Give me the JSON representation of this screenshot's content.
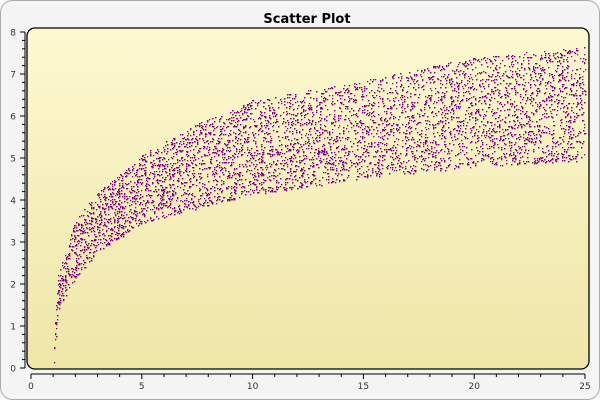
{
  "chart_data": {
    "type": "scatter",
    "title": "Scatter Plot",
    "xlabel": "",
    "ylabel": "",
    "xlim": [
      0,
      25
    ],
    "ylim": [
      0,
      8
    ],
    "x_ticks": [
      0,
      5,
      10,
      15,
      20,
      25
    ],
    "y_ticks": [
      0,
      1,
      2,
      3,
      4,
      5,
      6,
      7,
      8
    ],
    "grid": false,
    "marker_color": "#800080",
    "background_top": "#fdf8d0",
    "background_bottom": "#efe6a8",
    "point_band": {
      "x": [
        1,
        1.2,
        2,
        3,
        5,
        7.5,
        10,
        15,
        20,
        25
      ],
      "lower": [
        0,
        1.38,
        2.14,
        2.74,
        3.45,
        3.8,
        4.12,
        4.52,
        4.79,
        4.95
      ],
      "upper": [
        0.3,
        2.17,
        3.52,
        4.17,
        5.07,
        5.83,
        6.38,
        6.86,
        7.4,
        7.65
      ]
    }
  }
}
